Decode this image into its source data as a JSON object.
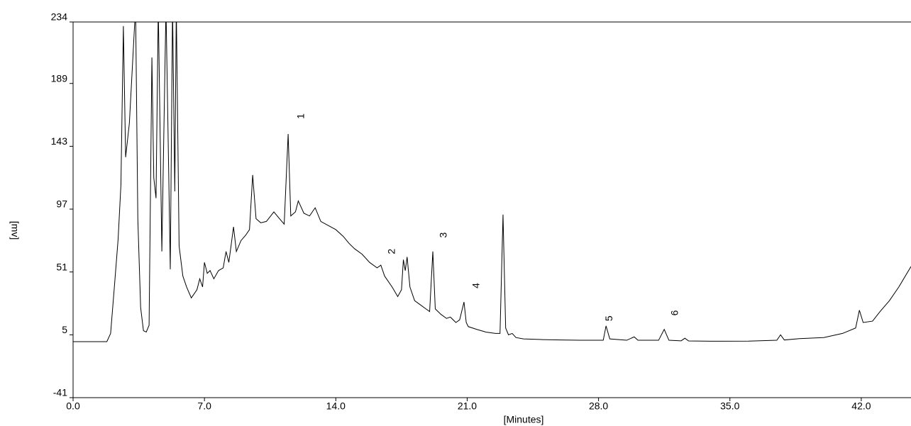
{
  "chart_data": {
    "type": "line",
    "x_label": "[Minutes]",
    "y_label": "[mv]",
    "color": "#000000",
    "xlim": [
      0,
      44.65
    ],
    "ylim": [
      -41,
      234
    ],
    "xticks": [
      {
        "value": 0,
        "label": "0.0"
      },
      {
        "value": 7,
        "label": "7.0"
      },
      {
        "value": 14,
        "label": "14.0"
      },
      {
        "value": 21,
        "label": "21.0"
      },
      {
        "value": 28,
        "label": "28.0"
      },
      {
        "value": 35,
        "label": "35.0"
      },
      {
        "value": 42,
        "label": "42.0"
      }
    ],
    "yticks": [
      -41,
      5,
      51,
      97,
      143,
      189,
      234
    ],
    "annotations": [
      {
        "text": "1",
        "x": 12.17,
        "y": 165
      },
      {
        "text": "2",
        "x": 17.0,
        "y": 66
      },
      {
        "text": "3",
        "x": 19.77,
        "y": 78
      },
      {
        "text": "4",
        "x": 21.5,
        "y": 41
      },
      {
        "text": "5",
        "x": 28.6,
        "y": 17
      },
      {
        "text": "6",
        "x": 32.1,
        "y": 21
      }
    ],
    "x": [
      0,
      1.8,
      2.0,
      2.2,
      2.4,
      2.55,
      2.68,
      2.8,
      3.0,
      3.33,
      3.45,
      3.6,
      3.75,
      3.9,
      4.05,
      4.2,
      4.3,
      4.42,
      4.54,
      4.73,
      4.95,
      5.18,
      5.3,
      5.42,
      5.5,
      5.65,
      5.85,
      6.05,
      6.3,
      6.6,
      6.75,
      6.9,
      7.0,
      7.15,
      7.3,
      7.5,
      7.75,
      8.0,
      8.15,
      8.3,
      8.55,
      8.7,
      8.95,
      9.2,
      9.4,
      9.57,
      9.75,
      10.0,
      10.3,
      10.7,
      11.0,
      11.25,
      11.46,
      11.6,
      11.85,
      12.0,
      12.3,
      12.6,
      12.9,
      13.2,
      13.6,
      14.0,
      14.4,
      14.7,
      15.0,
      15.4,
      15.8,
      16.2,
      16.4,
      16.6,
      17.0,
      17.3,
      17.5,
      17.6,
      17.7,
      17.8,
      17.95,
      18.2,
      18.5,
      18.8,
      19.0,
      19.17,
      19.3,
      19.6,
      19.9,
      20.1,
      20.4,
      20.6,
      20.83,
      20.95,
      21.06,
      21.5,
      22.0,
      22.5,
      22.75,
      22.91,
      23.05,
      23.2,
      23.4,
      23.6,
      24.0,
      25.0,
      26.0,
      27.0,
      28.0,
      28.25,
      28.4,
      28.6,
      29.5,
      29.9,
      30.1,
      31.2,
      31.5,
      31.75,
      32.4,
      32.6,
      32.8,
      34.0,
      36.0,
      37.5,
      37.7,
      37.9,
      38.7,
      40.0,
      41.0,
      41.7,
      41.9,
      42.1,
      42.6,
      43.0,
      43.5,
      44.0,
      44.65
    ],
    "values": [
      0,
      0,
      6,
      40,
      75,
      115,
      231,
      135,
      160,
      245,
      90,
      25,
      8,
      7,
      12,
      208,
      120,
      105,
      245,
      66,
      245,
      53,
      245,
      110,
      245,
      70,
      48,
      40,
      32,
      38,
      46,
      40,
      58,
      50,
      52,
      46,
      52,
      54,
      66,
      58,
      84,
      66,
      74,
      78,
      82,
      122,
      90,
      87,
      88,
      95,
      90,
      86,
      152,
      92,
      95,
      103,
      94,
      92,
      98,
      88,
      85,
      82,
      77,
      72,
      68,
      64,
      58,
      54,
      56,
      48,
      40,
      33,
      38,
      60,
      52,
      62,
      40,
      30,
      27,
      24,
      22,
      66,
      24,
      20,
      17,
      18,
      14,
      16,
      29,
      14,
      11,
      9,
      7,
      6,
      6,
      93,
      10,
      5,
      6,
      3,
      2,
      1.5,
      1.2,
      1,
      1,
      1,
      11.5,
      2,
      1,
      3.5,
      1,
      1,
      9,
      1,
      0.6,
      2.5,
      0.5,
      0.3,
      0.4,
      1,
      5,
      1.2,
      2.2,
      3,
      6,
      10,
      23,
      14,
      15,
      22,
      30,
      40,
      55
    ]
  }
}
